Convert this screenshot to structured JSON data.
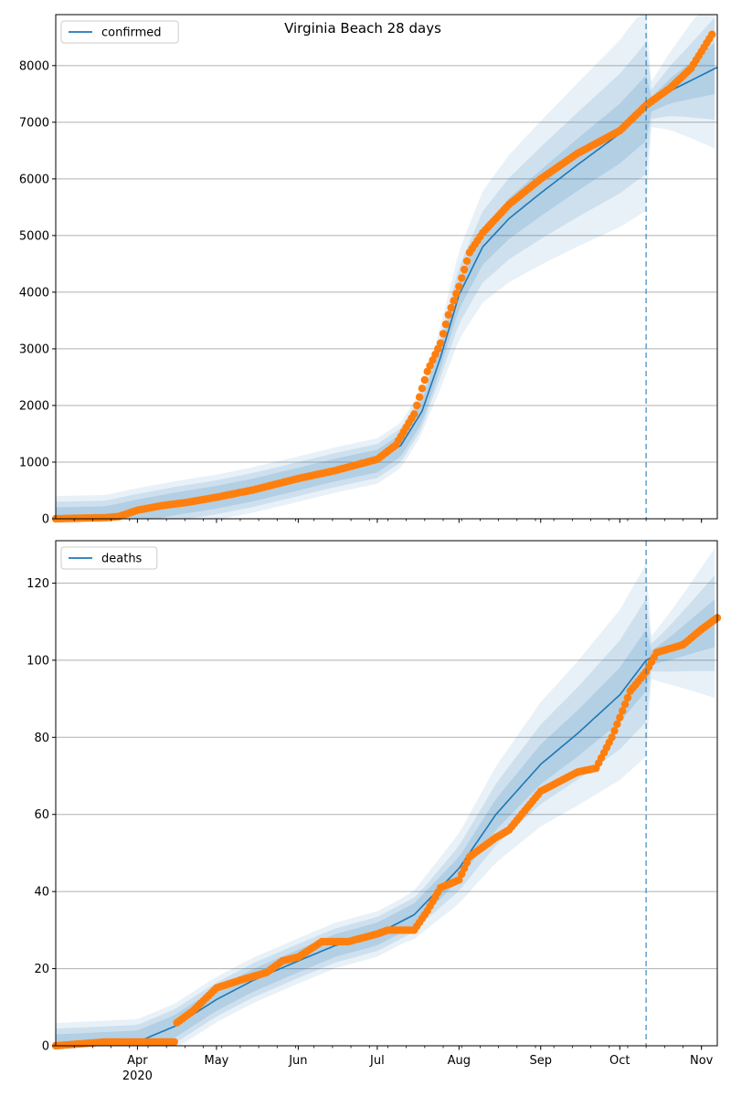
{
  "figure": {
    "title": "Virginia Beach 28 days",
    "colors": {
      "model": "#1f77b4",
      "observed": "#ff7f0e",
      "band": "#1f77b4",
      "grid": "#b0b0b0"
    }
  },
  "chart_data": [
    {
      "type": "line",
      "title": "Virginia Beach 28 days",
      "legend": {
        "entries": [
          "confirmed"
        ],
        "placement": "top-left"
      },
      "x_axis": {
        "type": "date",
        "range": [
          "2020-03-01",
          "2020-11-07"
        ],
        "tick_labels": [
          "Apr",
          "May",
          "Jun",
          "Jul",
          "Aug",
          "Sep",
          "Oct",
          "Nov"
        ],
        "year_label": "2020",
        "labels_shown": false
      },
      "ylim": [
        0,
        8900
      ],
      "y_ticks": [
        0,
        1000,
        2000,
        3000,
        4000,
        5000,
        6000,
        7000,
        8000
      ],
      "grid": "y",
      "forecast_start": "2020-10-11",
      "series": [
        {
          "name": "confirmed",
          "role": "model",
          "x": [
            "2020-03-01",
            "2020-03-20",
            "2020-04-01",
            "2020-04-15",
            "2020-05-01",
            "2020-05-15",
            "2020-06-01",
            "2020-06-15",
            "2020-07-01",
            "2020-07-10",
            "2020-07-18",
            "2020-07-25",
            "2020-08-01",
            "2020-08-10",
            "2020-08-20",
            "2020-09-01",
            "2020-09-15",
            "2020-10-01",
            "2020-10-11",
            "2020-10-20",
            "2020-11-07"
          ],
          "y": [
            0,
            20,
            140,
            260,
            380,
            510,
            700,
            860,
            1020,
            1300,
            1900,
            2850,
            3950,
            4800,
            5300,
            5750,
            6250,
            6800,
            7250,
            7550,
            7970
          ]
        },
        {
          "name": "",
          "role": "observed",
          "x": [
            "2020-03-01",
            "2020-03-20",
            "2020-03-25",
            "2020-04-01",
            "2020-04-10",
            "2020-04-20",
            "2020-05-01",
            "2020-05-15",
            "2020-06-01",
            "2020-06-15",
            "2020-07-01",
            "2020-07-08",
            "2020-07-15",
            "2020-07-20",
            "2020-07-25",
            "2020-07-28",
            "2020-08-01",
            "2020-08-05",
            "2020-08-10",
            "2020-08-20",
            "2020-09-01",
            "2020-09-15",
            "2020-10-01",
            "2020-10-11",
            "2020-10-20",
            "2020-10-28",
            "2020-11-05"
          ],
          "y": [
            0,
            20,
            40,
            150,
            230,
            290,
            380,
            510,
            710,
            850,
            1050,
            1300,
            1850,
            2600,
            3100,
            3600,
            4100,
            4700,
            5050,
            5550,
            6000,
            6450,
            6850,
            7300,
            7600,
            7950,
            8550
          ]
        }
      ]
    },
    {
      "type": "line",
      "title": "",
      "legend": {
        "entries": [
          "deaths"
        ],
        "placement": "top-left"
      },
      "x_axis": {
        "type": "date",
        "range": [
          "2020-03-01",
          "2020-11-07"
        ],
        "tick_labels": [
          "Apr",
          "May",
          "Jun",
          "Jul",
          "Aug",
          "Sep",
          "Oct",
          "Nov"
        ],
        "year_label": "2020",
        "labels_shown": true
      },
      "ylim": [
        0,
        131
      ],
      "y_ticks": [
        0,
        20,
        40,
        60,
        80,
        100,
        120
      ],
      "grid": "y",
      "forecast_start": "2020-10-11",
      "series": [
        {
          "name": "deaths",
          "role": "model",
          "x": [
            "2020-03-01",
            "2020-04-01",
            "2020-04-15",
            "2020-05-01",
            "2020-05-15",
            "2020-06-01",
            "2020-06-15",
            "2020-07-01",
            "2020-07-15",
            "2020-08-01",
            "2020-08-15",
            "2020-09-01",
            "2020-09-15",
            "2020-10-01",
            "2020-10-11",
            "2020-10-20",
            "2020-11-07"
          ],
          "y": [
            0,
            1,
            5,
            12,
            17,
            22,
            26,
            29,
            34,
            46,
            60,
            73,
            81,
            91,
            100,
            103,
            110
          ]
        },
        {
          "name": "",
          "role": "observed",
          "x": [
            "2020-03-01",
            "2020-03-20",
            "2020-04-15",
            "2020-04-16",
            "2020-04-22",
            "2020-05-01",
            "2020-05-10",
            "2020-05-20",
            "2020-05-26",
            "2020-06-01",
            "2020-06-10",
            "2020-06-20",
            "2020-07-01",
            "2020-07-05",
            "2020-07-15",
            "2020-07-20",
            "2020-07-25",
            "2020-08-01",
            "2020-08-05",
            "2020-08-15",
            "2020-08-20",
            "2020-09-01",
            "2020-09-15",
            "2020-09-22",
            "2020-09-28",
            "2020-10-05",
            "2020-10-11",
            "2020-10-15",
            "2020-10-25",
            "2020-11-01",
            "2020-11-07"
          ],
          "y": [
            0,
            1,
            1,
            6,
            9,
            15,
            17,
            19,
            22,
            23,
            27,
            27,
            29,
            30,
            30,
            35,
            41,
            43,
            49,
            54,
            56,
            66,
            71,
            72,
            80,
            92,
            97,
            102,
            104,
            108,
            111
          ]
        }
      ]
    }
  ]
}
